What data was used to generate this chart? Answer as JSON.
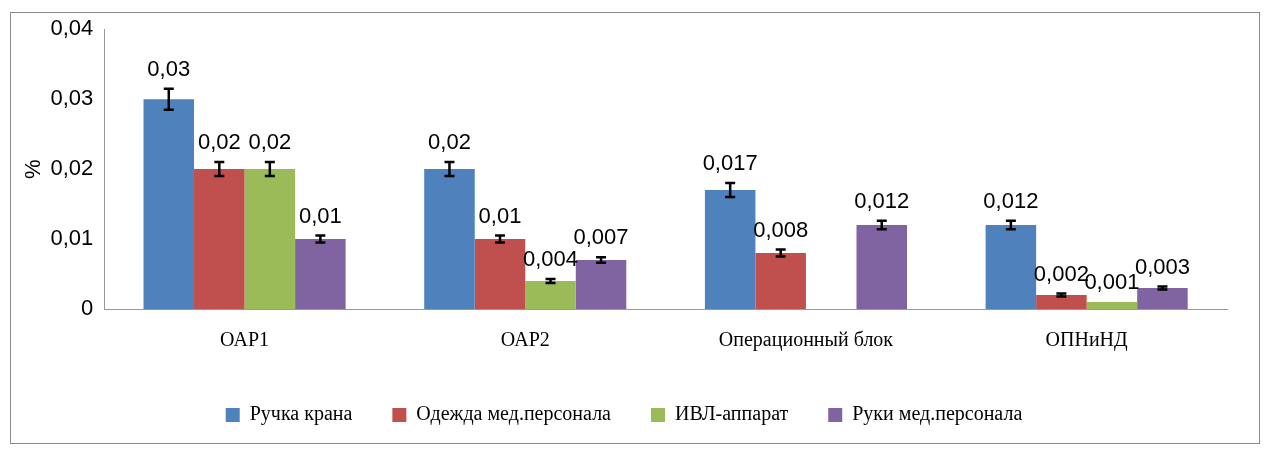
{
  "chart_data": {
    "type": "bar",
    "ylabel": "%",
    "categories": [
      "ОАР1",
      "ОАР2",
      "Операционный блок",
      "ОПНиНД"
    ],
    "series": [
      {
        "name": "Ручка крана",
        "color": "#4f81bd",
        "values": [
          0.03,
          0.02,
          0.017,
          0.012
        ],
        "errors": [
          0.0015,
          0.001,
          0.001,
          0.0006
        ],
        "value_labels": [
          "0,03",
          "0,02",
          "0,017",
          "0,012"
        ]
      },
      {
        "name": "Одежда мед.персонала",
        "color": "#c0504d",
        "values": [
          0.02,
          0.01,
          0.008,
          0.002
        ],
        "errors": [
          0.001,
          0.0005,
          0.0005,
          0.0002
        ],
        "value_labels": [
          "0,02",
          "0,01",
          "0,008",
          "0,002"
        ]
      },
      {
        "name": "ИВЛ-аппарат",
        "color": "#9bbb59",
        "values": [
          0.02,
          0.004,
          null,
          0.001
        ],
        "errors": [
          0.001,
          0.0003,
          null,
          null
        ],
        "value_labels": [
          "0,02",
          "0,004",
          null,
          "0,001"
        ]
      },
      {
        "name": "Руки мед.персонала",
        "color": "#8064a2",
        "values": [
          0.01,
          0.007,
          0.012,
          0.003
        ],
        "errors": [
          0.0005,
          0.0004,
          0.0006,
          0.0002
        ],
        "value_labels": [
          "0,01",
          "0,007",
          "0,012",
          "0,003"
        ]
      }
    ],
    "ylim": [
      0,
      0.04
    ],
    "yticks": [
      {
        "value": 0,
        "label": "0"
      },
      {
        "value": 0.01,
        "label": "0,01"
      },
      {
        "value": 0.02,
        "label": "0,02"
      },
      {
        "value": 0.03,
        "label": "0,03"
      },
      {
        "value": 0.04,
        "label": "0,04"
      }
    ],
    "grid": false,
    "legend": "bottom"
  }
}
